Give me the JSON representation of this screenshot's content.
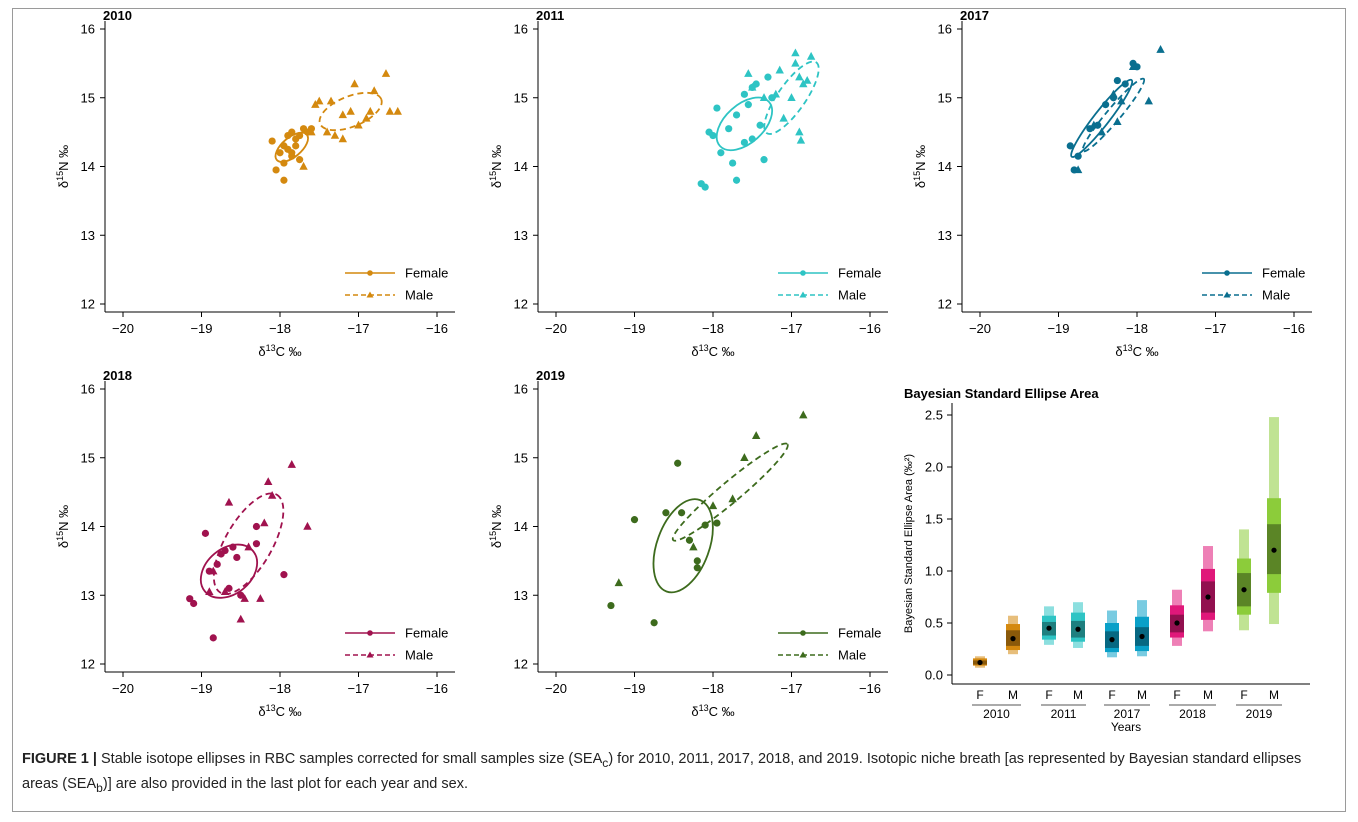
{
  "figure": {
    "caption": {
      "label": "FIGURE 1 |",
      "text_part1": " Stable isotope ellipses in RBC samples corrected for small samples size (SEA",
      "sub1": "c",
      "text_part2": ") for 2010, 2011, 2017, 2018, and 2019. Isotopic niche breath [as represented by Bayesian standard ellipses areas (SEA",
      "sub2": "b",
      "text_part3": ")] are also provided in the last plot for each year and sex."
    }
  },
  "chart_data": [
    {
      "type": "scatter",
      "title": "2010",
      "xlabel": "δ13C ‰",
      "ylabel": "δ15N ‰",
      "xlim": [
        -20,
        -16
      ],
      "ylim": [
        12,
        16
      ],
      "xticks": [
        -20,
        -19,
        -18,
        -17,
        -16
      ],
      "yticks": [
        12,
        13,
        14,
        15,
        16
      ],
      "color": "#d4890f",
      "legend_placement": "bottom-right",
      "series": [
        {
          "name": "Female",
          "marker": "circle",
          "line": "solid",
          "points": [
            [
              -18.1,
              14.37
            ],
            [
              -18.05,
              13.95
            ],
            [
              -17.95,
              13.8
            ],
            [
              -17.95,
              14.05
            ],
            [
              -18.0,
              14.2
            ],
            [
              -17.9,
              14.25
            ],
            [
              -17.85,
              14.2
            ],
            [
              -17.8,
              14.3
            ],
            [
              -17.9,
              14.45
            ],
            [
              -17.85,
              14.5
            ],
            [
              -17.8,
              14.4
            ],
            [
              -17.75,
              14.45
            ],
            [
              -17.7,
              14.55
            ],
            [
              -17.65,
              14.5
            ],
            [
              -17.6,
              14.55
            ],
            [
              -17.75,
              14.1
            ],
            [
              -17.85,
              14.15
            ],
            [
              -17.95,
              14.3
            ]
          ],
          "ellipse": {
            "cx": -17.85,
            "cy": 14.28,
            "rx": 0.25,
            "ry": 0.14,
            "angle": 40
          }
        },
        {
          "name": "Male",
          "marker": "triangle",
          "line": "dashed",
          "points": [
            [
              -17.7,
              14.0
            ],
            [
              -17.6,
              14.5
            ],
            [
              -17.55,
              14.9
            ],
            [
              -17.5,
              14.95
            ],
            [
              -17.4,
              14.5
            ],
            [
              -17.3,
              14.45
            ],
            [
              -17.2,
              14.75
            ],
            [
              -17.1,
              14.8
            ],
            [
              -17.05,
              15.2
            ],
            [
              -17.0,
              14.6
            ],
            [
              -16.9,
              14.7
            ],
            [
              -16.85,
              14.8
            ],
            [
              -16.8,
              15.1
            ],
            [
              -16.65,
              15.35
            ],
            [
              -16.6,
              14.8
            ],
            [
              -16.5,
              14.8
            ],
            [
              -17.35,
              14.95
            ],
            [
              -17.2,
              14.4
            ]
          ],
          "ellipse": {
            "cx": -17.1,
            "cy": 14.8,
            "rx": 0.42,
            "ry": 0.22,
            "angle": 22
          }
        }
      ]
    },
    {
      "type": "scatter",
      "title": "2011",
      "xlabel": "δ13C ‰",
      "ylabel": "δ15N ‰",
      "xlim": [
        -20,
        -16
      ],
      "ylim": [
        12,
        16
      ],
      "xticks": [
        -20,
        -19,
        -18,
        -17,
        -16
      ],
      "yticks": [
        12,
        13,
        14,
        15,
        16
      ],
      "color": "#2ec4c4",
      "legend_placement": "bottom-right",
      "series": [
        {
          "name": "Female",
          "marker": "circle",
          "line": "solid",
          "points": [
            [
              -18.15,
              13.75
            ],
            [
              -18.1,
              13.7
            ],
            [
              -18.05,
              14.5
            ],
            [
              -18.0,
              14.45
            ],
            [
              -17.95,
              14.85
            ],
            [
              -17.9,
              14.2
            ],
            [
              -17.8,
              14.55
            ],
            [
              -17.75,
              14.05
            ],
            [
              -17.7,
              13.8
            ],
            [
              -17.7,
              14.75
            ],
            [
              -17.6,
              15.05
            ],
            [
              -17.55,
              14.9
            ],
            [
              -17.5,
              15.15
            ],
            [
              -17.45,
              15.2
            ],
            [
              -17.4,
              14.6
            ],
            [
              -17.35,
              14.1
            ],
            [
              -17.3,
              15.3
            ],
            [
              -17.25,
              15.0
            ],
            [
              -17.5,
              14.4
            ],
            [
              -17.6,
              14.35
            ]
          ],
          "ellipse": {
            "cx": -17.6,
            "cy": 14.62,
            "rx": 0.42,
            "ry": 0.28,
            "angle": 42
          }
        },
        {
          "name": "Male",
          "marker": "triangle",
          "line": "dashed",
          "points": [
            [
              -17.55,
              15.35
            ],
            [
              -17.5,
              15.15
            ],
            [
              -17.35,
              15.0
            ],
            [
              -17.2,
              15.05
            ],
            [
              -17.1,
              14.7
            ],
            [
              -17.0,
              15.0
            ],
            [
              -16.95,
              15.65
            ],
            [
              -16.9,
              15.3
            ],
            [
              -16.9,
              14.5
            ],
            [
              -16.88,
              14.38
            ],
            [
              -16.85,
              15.2
            ],
            [
              -16.8,
              15.25
            ],
            [
              -16.75,
              15.6
            ],
            [
              -16.95,
              15.5
            ],
            [
              -17.15,
              15.4
            ]
          ],
          "ellipse": {
            "cx": -17.0,
            "cy": 15.0,
            "rx": 0.55,
            "ry": 0.2,
            "angle": 55
          }
        }
      ]
    },
    {
      "type": "scatter",
      "title": "2017",
      "xlabel": "δ13C ‰",
      "ylabel": "δ15N ‰",
      "xlim": [
        -20,
        -16
      ],
      "ylim": [
        12,
        16
      ],
      "xticks": [
        -20,
        -19,
        -18,
        -17,
        -16
      ],
      "yticks": [
        12,
        13,
        14,
        15,
        16
      ],
      "color": "#0a6f8f",
      "legend_placement": "bottom-right",
      "series": [
        {
          "name": "Female",
          "marker": "circle",
          "line": "solid",
          "points": [
            [
              -18.85,
              14.3
            ],
            [
              -18.8,
              13.95
            ],
            [
              -18.75,
              14.15
            ],
            [
              -18.6,
              14.55
            ],
            [
              -18.5,
              14.6
            ],
            [
              -18.4,
              14.9
            ],
            [
              -18.3,
              15.0
            ],
            [
              -18.25,
              15.25
            ],
            [
              -18.15,
              15.2
            ],
            [
              -18.05,
              15.5
            ],
            [
              -18.0,
              15.45
            ]
          ],
          "ellipse": {
            "cx": -18.45,
            "cy": 14.7,
            "rx": 0.62,
            "ry": 0.11,
            "angle": 52
          }
        },
        {
          "name": "Male",
          "marker": "triangle",
          "line": "dashed",
          "points": [
            [
              -18.75,
              13.95
            ],
            [
              -18.55,
              14.6
            ],
            [
              -18.45,
              14.5
            ],
            [
              -18.3,
              15.05
            ],
            [
              -18.25,
              14.65
            ],
            [
              -18.2,
              14.95
            ],
            [
              -18.05,
              15.45
            ],
            [
              -17.85,
              14.95
            ],
            [
              -17.7,
              15.7
            ]
          ],
          "ellipse": {
            "cx": -18.3,
            "cy": 14.75,
            "rx": 0.6,
            "ry": 0.1,
            "angle": 50
          }
        }
      ]
    },
    {
      "type": "scatter",
      "title": "2018",
      "xlabel": "δ13C ‰",
      "ylabel": "δ15N ‰",
      "xlim": [
        -20,
        -16
      ],
      "ylim": [
        12,
        16
      ],
      "xticks": [
        -20,
        -19,
        -18,
        -17,
        -16
      ],
      "yticks": [
        12,
        13,
        14,
        15,
        16
      ],
      "color": "#a0124e",
      "legend_placement": "bottom-right",
      "series": [
        {
          "name": "Female",
          "marker": "circle",
          "line": "solid",
          "points": [
            [
              -19.15,
              12.95
            ],
            [
              -19.1,
              12.88
            ],
            [
              -18.95,
              13.9
            ],
            [
              -18.9,
              13.35
            ],
            [
              -18.85,
              12.38
            ],
            [
              -18.8,
              13.45
            ],
            [
              -18.75,
              13.6
            ],
            [
              -18.7,
              13.65
            ],
            [
              -18.6,
              13.7
            ],
            [
              -18.55,
              13.55
            ],
            [
              -18.5,
              13.0
            ],
            [
              -18.3,
              13.75
            ],
            [
              -18.3,
              14.0
            ],
            [
              -17.95,
              13.3
            ],
            [
              -18.65,
              13.1
            ]
          ],
          "ellipse": {
            "cx": -18.65,
            "cy": 13.35,
            "rx": 0.4,
            "ry": 0.33,
            "angle": 40
          }
        },
        {
          "name": "Male",
          "marker": "triangle",
          "line": "dashed",
          "points": [
            [
              -18.9,
              13.05
            ],
            [
              -18.85,
              13.35
            ],
            [
              -18.7,
              13.05
            ],
            [
              -18.65,
              14.35
            ],
            [
              -18.5,
              12.65
            ],
            [
              -18.45,
              12.95
            ],
            [
              -18.25,
              12.95
            ],
            [
              -18.2,
              14.05
            ],
            [
              -18.15,
              14.65
            ],
            [
              -18.1,
              14.45
            ],
            [
              -17.85,
              14.9
            ],
            [
              -17.65,
              14.0
            ],
            [
              -18.4,
              13.7
            ]
          ],
          "ellipse": {
            "cx": -18.4,
            "cy": 13.75,
            "rx": 0.72,
            "ry": 0.34,
            "angle": 60
          }
        }
      ]
    },
    {
      "type": "scatter",
      "title": "2019",
      "xlabel": "δ13C ‰",
      "ylabel": "δ15N ‰",
      "xlim": [
        -20,
        -16
      ],
      "ylim": [
        12,
        16
      ],
      "xticks": [
        -20,
        -19,
        -18,
        -17,
        -16
      ],
      "yticks": [
        12,
        13,
        14,
        15,
        16
      ],
      "color": "#3d6b1d",
      "legend_placement": "bottom-right",
      "series": [
        {
          "name": "Female",
          "marker": "circle",
          "line": "solid",
          "points": [
            [
              -19.3,
              12.85
            ],
            [
              -19.0,
              14.1
            ],
            [
              -18.75,
              12.6
            ],
            [
              -18.6,
              14.2
            ],
            [
              -18.45,
              14.92
            ],
            [
              -18.4,
              14.2
            ],
            [
              -18.3,
              13.8
            ],
            [
              -18.2,
              13.5
            ],
            [
              -18.2,
              13.4
            ],
            [
              -18.1,
              14.02
            ],
            [
              -17.95,
              14.05
            ]
          ],
          "ellipse": {
            "cx": -18.38,
            "cy": 13.72,
            "rx": 0.62,
            "ry": 0.38,
            "angle": 70
          }
        },
        {
          "name": "Male",
          "marker": "triangle",
          "line": "dashed",
          "points": [
            [
              -19.2,
              13.18
            ],
            [
              -18.25,
              13.7
            ],
            [
              -18.0,
              14.3
            ],
            [
              -17.75,
              14.4
            ],
            [
              -17.6,
              15.0
            ],
            [
              -17.45,
              15.32
            ],
            [
              -16.85,
              15.62
            ]
          ],
          "ellipse": {
            "cx": -17.78,
            "cy": 14.5,
            "rx": 0.95,
            "ry": 0.15,
            "angle": 40
          }
        }
      ]
    },
    {
      "type": "box",
      "title": "Bayesian Standard Ellipse Area",
      "ylabel": "Bayesian Standard Ellipse Area (‰²)",
      "xlabel": "Years",
      "ylim": [
        0,
        2.6
      ],
      "yticks": [
        "0.0",
        "0.5",
        "1.0",
        "1.5",
        "2.0",
        "2.5"
      ],
      "groups": [
        {
          "year": "2010",
          "items": [
            {
              "label": "F",
              "color": "#d4890f",
              "median": 0.12,
              "ci50": [
                0.1,
                0.14
              ],
              "ci75": [
                0.09,
                0.16
              ],
              "ci95": [
                0.07,
                0.18
              ]
            },
            {
              "label": "M",
              "color": "#d4890f",
              "median": 0.35,
              "ci50": [
                0.28,
                0.43
              ],
              "ci75": [
                0.24,
                0.49
              ],
              "ci95": [
                0.2,
                0.57
              ]
            }
          ]
        },
        {
          "year": "2011",
          "items": [
            {
              "label": "F",
              "color": "#2ec4c4",
              "median": 0.45,
              "ci50": [
                0.38,
                0.51
              ],
              "ci75": [
                0.34,
                0.57
              ],
              "ci95": [
                0.29,
                0.66
              ]
            },
            {
              "label": "M",
              "color": "#2ec4c4",
              "median": 0.44,
              "ci50": [
                0.36,
                0.52
              ],
              "ci75": [
                0.32,
                0.6
              ],
              "ci95": [
                0.26,
                0.7
              ]
            }
          ]
        },
        {
          "year": "2017",
          "items": [
            {
              "label": "F",
              "color": "#0aa0c8",
              "median": 0.34,
              "ci50": [
                0.26,
                0.42
              ],
              "ci75": [
                0.22,
                0.5
              ],
              "ci95": [
                0.17,
                0.62
              ]
            },
            {
              "label": "M",
              "color": "#0aa0c8",
              "median": 0.37,
              "ci50": [
                0.28,
                0.46
              ],
              "ci75": [
                0.23,
                0.56
              ],
              "ci95": [
                0.18,
                0.72
              ]
            }
          ]
        },
        {
          "year": "2018",
          "items": [
            {
              "label": "F",
              "color": "#e0187a",
              "median": 0.5,
              "ci50": [
                0.41,
                0.58
              ],
              "ci75": [
                0.36,
                0.67
              ],
              "ci95": [
                0.28,
                0.82
              ]
            },
            {
              "label": "M",
              "color": "#e0187a",
              "median": 0.75,
              "ci50": [
                0.6,
                0.9
              ],
              "ci75": [
                0.53,
                1.02
              ],
              "ci95": [
                0.42,
                1.24
              ]
            }
          ]
        },
        {
          "year": "2019",
          "items": [
            {
              "label": "F",
              "color": "#8ccc3a",
              "median": 0.82,
              "ci50": [
                0.66,
                0.98
              ],
              "ci75": [
                0.58,
                1.12
              ],
              "ci95": [
                0.43,
                1.4
              ]
            },
            {
              "label": "M",
              "color": "#8ccc3a",
              "median": 1.2,
              "ci50": [
                0.97,
                1.45
              ],
              "ci75": [
                0.79,
                1.7
              ],
              "ci95": [
                0.49,
                2.48
              ]
            }
          ]
        }
      ]
    }
  ]
}
